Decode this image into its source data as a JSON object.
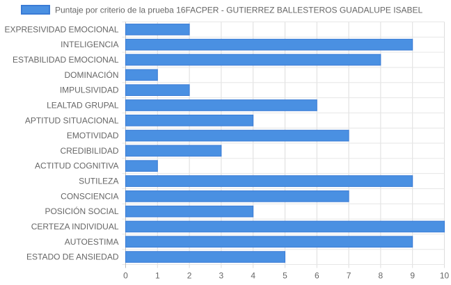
{
  "chart_data": {
    "type": "bar",
    "orientation": "horizontal",
    "categories": [
      "EXPRESIVIDAD EMOCIONAL",
      "INTELIGENCIA",
      "ESTABILIDAD EMOCIONAL",
      "DOMINACIÓN",
      "IMPULSIVIDAD",
      "LEALTAD GRUPAL",
      "APTITUD SITUACIONAL",
      "EMOTIVIDAD",
      "CREDIBILIDAD",
      "ACTITUD COGNITIVA",
      "SUTILEZA",
      "CONSCIENCIA",
      "POSICIÓN SOCIAL",
      "CERTEZA INDIVIDUAL",
      "AUTOESTIMA",
      "ESTADO DE ANSIEDAD"
    ],
    "series": [
      {
        "name": "Puntaje por criterio de la prueba 16FACPER - GUTIERREZ BALLESTEROS GUADALUPE ISABEL",
        "values": [
          2,
          9,
          8,
          1,
          2,
          6,
          4,
          7,
          3,
          1,
          9,
          7,
          4,
          10,
          9,
          5
        ],
        "color": "#4a90e2",
        "border_color": "#3a7bd5"
      }
    ],
    "xlim": [
      0,
      10
    ],
    "xticks": [
      "0",
      "1",
      "2",
      "3",
      "4",
      "5",
      "6",
      "7",
      "8",
      "9",
      "10"
    ],
    "grid": true,
    "legend_position": "top"
  }
}
